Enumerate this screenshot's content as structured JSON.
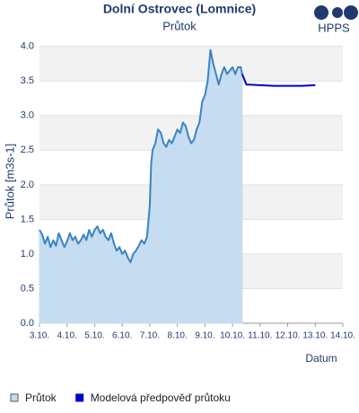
{
  "chart_data": {
    "type": "line",
    "title": "Dolní Ostrovec (Lomnice)",
    "subtitle": "Průtok",
    "y_label": "Průtok [m3s-1]",
    "x_label": "Datum",
    "logo": "HPPS",
    "grid": true,
    "xlim": [
      3,
      14
    ],
    "ylim": [
      0,
      4.1
    ],
    "xticks": [
      {
        "value": 3,
        "label": "3.10."
      },
      {
        "value": 4,
        "label": "4.10."
      },
      {
        "value": 5,
        "label": "5.10."
      },
      {
        "value": 6,
        "label": "6.10."
      },
      {
        "value": 7,
        "label": "7.10."
      },
      {
        "value": 8,
        "label": "8.10."
      },
      {
        "value": 9,
        "label": "9.10."
      },
      {
        "value": 10,
        "label": "10.10."
      },
      {
        "value": 11,
        "label": "11.10."
      },
      {
        "value": 12,
        "label": "12.10."
      },
      {
        "value": 13,
        "label": "13.10."
      },
      {
        "value": 14,
        "label": "14.10."
      }
    ],
    "yticks": [
      {
        "value": 0,
        "label": "0.0"
      },
      0.5,
      {
        "value": 1,
        "label": "1.0"
      },
      1.5,
      {
        "value": 2,
        "label": "2.0"
      },
      2.5,
      {
        "value": 3,
        "label": "3.0"
      },
      3.5,
      {
        "value": 4,
        "label": "4.0"
      }
    ],
    "series": [
      {
        "name": "Průtok",
        "color": "#3a84c1",
        "fill": "#c6dcf0",
        "x": [
          3.0,
          3.1,
          3.2,
          3.3,
          3.4,
          3.5,
          3.6,
          3.7,
          3.8,
          3.9,
          4.0,
          4.1,
          4.2,
          4.3,
          4.4,
          4.5,
          4.6,
          4.7,
          4.8,
          4.9,
          5.0,
          5.1,
          5.2,
          5.3,
          5.4,
          5.5,
          5.6,
          5.7,
          5.8,
          5.9,
          6.0,
          6.1,
          6.2,
          6.3,
          6.4,
          6.5,
          6.6,
          6.7,
          6.8,
          6.9,
          7.0,
          7.05,
          7.1,
          7.2,
          7.3,
          7.4,
          7.5,
          7.6,
          7.7,
          7.8,
          7.9,
          8.0,
          8.1,
          8.2,
          8.3,
          8.4,
          8.5,
          8.6,
          8.7,
          8.8,
          8.9,
          9.0,
          9.1,
          9.2,
          9.3,
          9.4,
          9.5,
          9.6,
          9.7,
          9.8,
          9.9,
          10.0,
          10.1,
          10.2,
          10.3,
          10.35
        ],
        "values": [
          1.35,
          1.28,
          1.15,
          1.25,
          1.1,
          1.2,
          1.12,
          1.3,
          1.2,
          1.1,
          1.18,
          1.3,
          1.2,
          1.25,
          1.15,
          1.2,
          1.28,
          1.2,
          1.35,
          1.25,
          1.35,
          1.4,
          1.3,
          1.35,
          1.25,
          1.2,
          1.3,
          1.15,
          1.05,
          1.1,
          1.0,
          1.05,
          0.95,
          0.88,
          1.0,
          1.05,
          1.12,
          1.2,
          1.15,
          1.25,
          1.7,
          2.3,
          2.5,
          2.6,
          2.8,
          2.75,
          2.6,
          2.55,
          2.65,
          2.6,
          2.7,
          2.8,
          2.75,
          2.9,
          2.85,
          2.7,
          2.6,
          2.65,
          2.8,
          2.9,
          3.2,
          3.3,
          3.5,
          3.95,
          3.75,
          3.6,
          3.45,
          3.6,
          3.7,
          3.6,
          3.65,
          3.7,
          3.6,
          3.7,
          3.7,
          3.6
        ]
      },
      {
        "name": "Modelová předpověď průtoku",
        "color": "#0000cc",
        "x": [
          10.35,
          10.5,
          11.0,
          11.5,
          12.0,
          12.5,
          13.0
        ],
        "values": [
          3.6,
          3.45,
          3.44,
          3.43,
          3.43,
          3.43,
          3.44
        ]
      }
    ]
  }
}
